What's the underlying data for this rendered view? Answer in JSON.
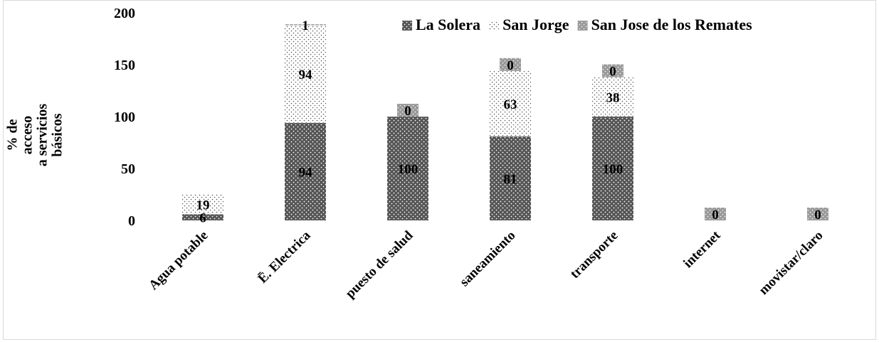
{
  "chart_data": {
    "type": "bar",
    "stacked": true,
    "title": "",
    "xlabel": "",
    "ylabel": "% de acceso a servicios básicos",
    "ylabel_lines": [
      "% de",
      "acceso",
      "a servicios",
      "básicos"
    ],
    "ylim": [
      0,
      200
    ],
    "yticks": [
      0,
      50,
      100,
      150,
      200
    ],
    "grid": false,
    "legend_position": "top-right",
    "categories": [
      "Agua potable",
      "Ē. Electrica",
      "puesto de salud",
      "saneamiento",
      "transporte",
      "internet",
      "movistar/claro"
    ],
    "series": [
      {
        "name": "La Solera",
        "values": [
          6,
          94,
          100,
          81,
          100,
          0,
          0
        ],
        "labels": [
          "6",
          "94",
          "100",
          "81",
          "100",
          "",
          ""
        ],
        "color": "#595959",
        "pattern": "dark-dots"
      },
      {
        "name": "San Jorge",
        "values": [
          19,
          94,
          0,
          63,
          38,
          0,
          0
        ],
        "labels": [
          "19",
          "94",
          "",
          "63",
          "38",
          "",
          ""
        ],
        "color": "#ffffff",
        "pattern": "light-dots"
      },
      {
        "name": "San Jose de los Remates",
        "values": [
          0,
          1,
          0,
          0,
          0,
          0,
          0
        ],
        "labels": [
          "",
          "1",
          "0",
          "0",
          "0",
          "0",
          "0"
        ],
        "color": "#a6a6a6",
        "pattern": "grey-dots"
      }
    ]
  }
}
